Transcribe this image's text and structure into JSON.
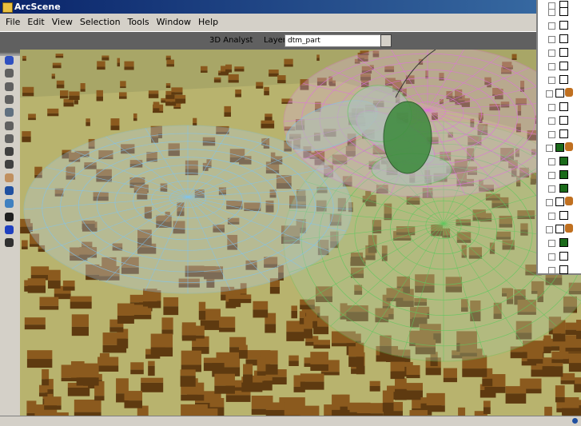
{
  "window": {
    "title": "ArcScene"
  },
  "menu": [
    "File",
    "Edit",
    "View",
    "Selection",
    "Tools",
    "Window",
    "Help"
  ],
  "toolbar": {
    "analyst": "3D Analyst",
    "layer_label": "Layer:",
    "layer_value": "dtm_part"
  }
}
